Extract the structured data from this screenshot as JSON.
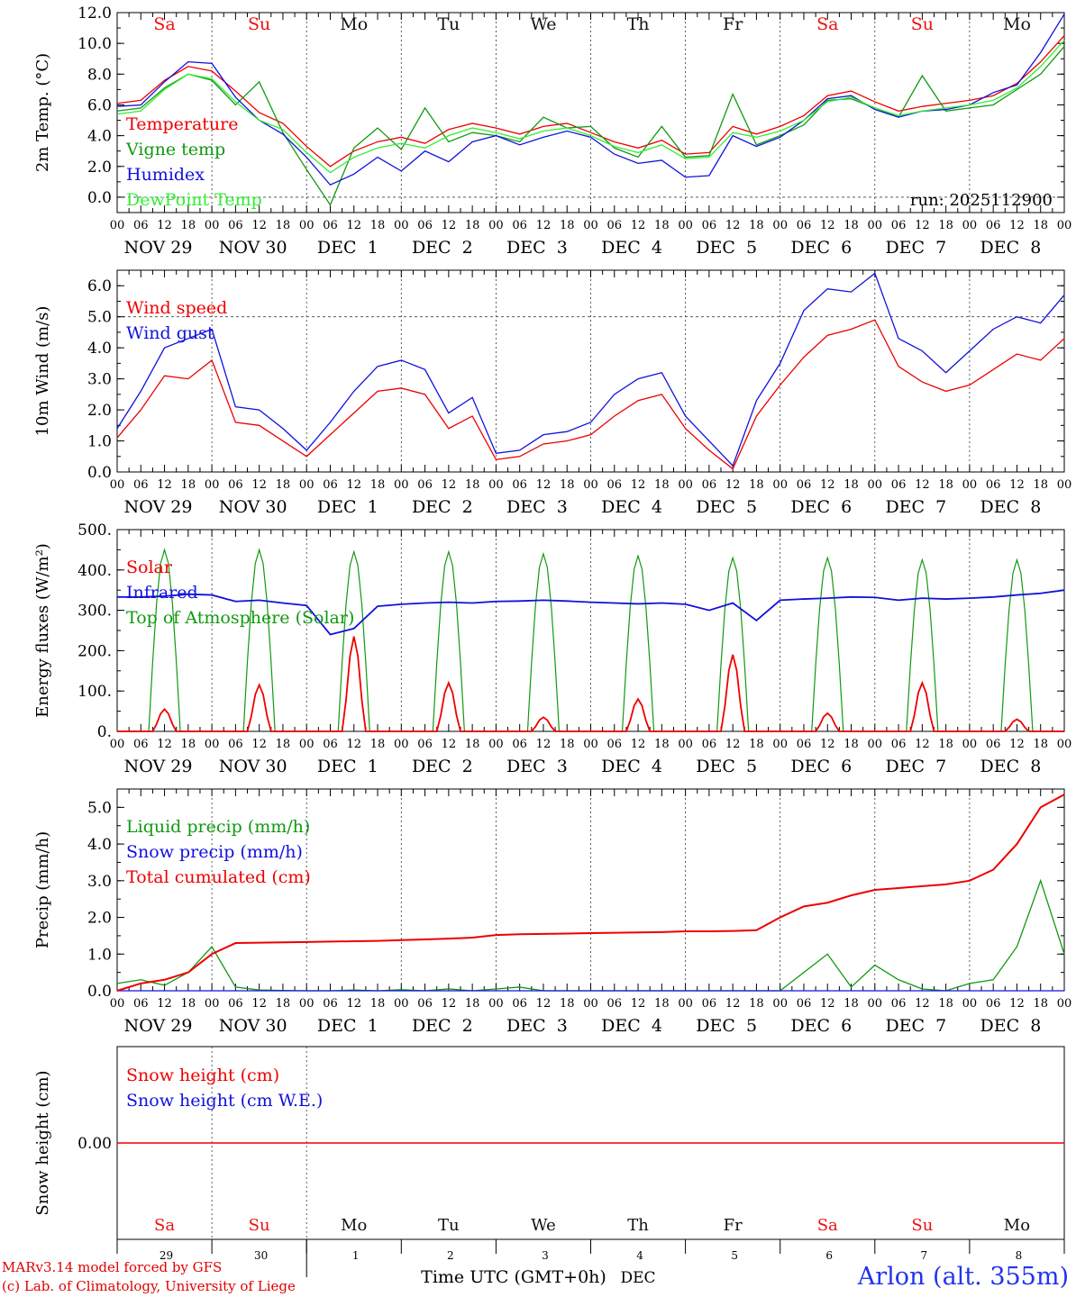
{
  "meteogram": {
    "station": "Arlon (alt. 355m)",
    "run_label": "run: 2025112900",
    "credit_line1": "MARv3.14 model forced by GFS",
    "credit_line2": "(c) Lab. of Climatology, University of Liege",
    "time_axis_title": "Time UTC (GMT+0h)",
    "month_label": "DEC",
    "hour_ticks": [
      "00",
      "06",
      "12",
      "18"
    ],
    "days": [
      {
        "date_label": "NOV 29",
        "weekday": "Sa",
        "day_num": "29",
        "weekend": true
      },
      {
        "date_label": "NOV 30",
        "weekday": "Su",
        "day_num": "30",
        "weekend": true
      },
      {
        "date_label": "DEC  1",
        "weekday": "Mo",
        "day_num": "1",
        "weekend": false
      },
      {
        "date_label": "DEC  2",
        "weekday": "Tu",
        "day_num": "2",
        "weekend": false
      },
      {
        "date_label": "DEC  3",
        "weekday": "We",
        "day_num": "3",
        "weekend": false
      },
      {
        "date_label": "DEC  4",
        "weekday": "Th",
        "day_num": "4",
        "weekend": false
      },
      {
        "date_label": "DEC  5",
        "weekday": "Fr",
        "day_num": "5",
        "weekend": false
      },
      {
        "date_label": "DEC  6",
        "weekday": "Sa",
        "day_num": "6",
        "weekend": true
      },
      {
        "date_label": "DEC  7",
        "weekday": "Su",
        "day_num": "7",
        "weekend": true
      },
      {
        "date_label": "DEC  8",
        "weekday": "Mo",
        "day_num": "8",
        "weekend": false
      }
    ],
    "colors": {
      "weekend": "#ee1111",
      "weekday": "#111111",
      "red": "#ee0000",
      "green": "#119911",
      "blue": "#1111dd",
      "lightgreen": "#33ee33"
    }
  },
  "chart_data": [
    {
      "type": "line",
      "id": "temp",
      "ylabel": "2m Temp. (°C)",
      "ylim": [
        -1.0,
        12.0
      ],
      "ytick_values": [
        0,
        2,
        4,
        6,
        8,
        10,
        12
      ],
      "ytick_labels": [
        "0.0",
        "2.0",
        "4.0",
        "6.0",
        "8.0",
        "10.0",
        "12.0"
      ],
      "ref_lines": [
        0
      ],
      "x_hours": [
        0,
        6,
        12,
        18,
        24,
        30,
        36,
        42,
        48,
        54,
        60,
        66,
        72,
        78,
        84,
        90,
        96,
        102,
        108,
        114,
        120,
        126,
        132,
        138,
        144,
        150,
        156,
        162,
        168,
        174,
        180,
        186,
        192,
        198,
        204,
        210,
        216,
        222,
        228,
        234,
        240
      ],
      "series": [
        {
          "name": "Temperature",
          "color": "#ee0000",
          "values": [
            6.1,
            6.3,
            7.6,
            8.5,
            8.2,
            6.9,
            5.5,
            4.8,
            3.3,
            2.0,
            3.0,
            3.6,
            3.9,
            3.5,
            4.4,
            4.8,
            4.5,
            4.1,
            4.6,
            4.8,
            4.2,
            3.6,
            3.2,
            3.7,
            2.8,
            2.9,
            4.6,
            4.1,
            4.6,
            5.3,
            6.6,
            6.9,
            6.2,
            5.6,
            5.9,
            6.1,
            6.3,
            6.6,
            7.4,
            8.8,
            10.5
          ]
        },
        {
          "name": "Vigne temp",
          "color": "#119911",
          "values": [
            5.6,
            5.8,
            7.1,
            8.0,
            7.6,
            6.0,
            7.5,
            4.2,
            1.8,
            -0.5,
            3.2,
            4.5,
            3.1,
            5.8,
            3.6,
            4.2,
            4.0,
            3.6,
            5.2,
            4.5,
            4.6,
            3.2,
            2.6,
            4.6,
            2.6,
            2.7,
            6.7,
            3.4,
            4.0,
            4.7,
            6.3,
            6.4,
            5.8,
            5.2,
            7.9,
            5.6,
            5.8,
            6.0,
            7.0,
            8.0,
            9.8
          ]
        },
        {
          "name": "Humidex",
          "color": "#1111dd",
          "values": [
            5.9,
            6.0,
            7.5,
            8.8,
            8.7,
            6.5,
            5.0,
            4.1,
            2.6,
            0.8,
            1.5,
            2.6,
            1.7,
            3.0,
            2.3,
            3.6,
            4.0,
            3.4,
            3.9,
            4.3,
            3.9,
            2.8,
            2.2,
            2.4,
            1.3,
            1.4,
            4.0,
            3.3,
            3.9,
            5.0,
            6.4,
            6.6,
            5.7,
            5.2,
            5.6,
            5.7,
            6.0,
            6.8,
            7.3,
            9.4,
            11.9
          ]
        },
        {
          "name": "DewPoint Temp",
          "color": "#33ee33",
          "values": [
            5.4,
            5.6,
            7.0,
            8.0,
            7.7,
            6.2,
            5.0,
            4.4,
            2.9,
            1.6,
            2.6,
            3.2,
            3.5,
            3.2,
            4.0,
            4.5,
            4.2,
            3.8,
            4.3,
            4.5,
            4.0,
            3.3,
            2.9,
            3.4,
            2.5,
            2.6,
            4.2,
            3.9,
            4.3,
            5.0,
            6.2,
            6.5,
            5.8,
            5.3,
            5.6,
            5.8,
            6.0,
            6.3,
            7.1,
            8.5,
            10.2
          ]
        }
      ]
    },
    {
      "type": "line",
      "id": "wind",
      "ylabel": "10m Wind (m/s)",
      "ylim": [
        0,
        6.5
      ],
      "ytick_values": [
        0,
        1,
        2,
        3,
        4,
        5,
        6
      ],
      "ytick_labels": [
        "0.0",
        "1.0",
        "2.0",
        "3.0",
        "4.0",
        "5.0",
        "6.0"
      ],
      "ref_lines": [
        5
      ],
      "x_hours": [
        0,
        6,
        12,
        18,
        24,
        30,
        36,
        42,
        48,
        54,
        60,
        66,
        72,
        78,
        84,
        90,
        96,
        102,
        108,
        114,
        120,
        126,
        132,
        138,
        144,
        150,
        156,
        162,
        168,
        174,
        180,
        186,
        192,
        198,
        204,
        210,
        216,
        222,
        228,
        234,
        240
      ],
      "series": [
        {
          "name": "Wind speed",
          "color": "#ee0000",
          "values": [
            1.1,
            2.0,
            3.1,
            3.0,
            3.6,
            1.6,
            1.5,
            1.0,
            0.5,
            1.2,
            1.9,
            2.6,
            2.7,
            2.5,
            1.4,
            1.8,
            0.4,
            0.5,
            0.9,
            1.0,
            1.2,
            1.8,
            2.3,
            2.5,
            1.4,
            0.7,
            0.1,
            1.8,
            2.8,
            3.7,
            4.4,
            4.6,
            4.9,
            3.4,
            2.9,
            2.6,
            2.8,
            3.3,
            3.8,
            3.6,
            4.3
          ]
        },
        {
          "name": "Wind gust",
          "color": "#1111dd",
          "values": [
            1.4,
            2.6,
            4.0,
            4.3,
            4.6,
            2.1,
            2.0,
            1.4,
            0.7,
            1.6,
            2.6,
            3.4,
            3.6,
            3.3,
            1.9,
            2.4,
            0.6,
            0.7,
            1.2,
            1.3,
            1.6,
            2.5,
            3.0,
            3.2,
            1.8,
            1.0,
            0.2,
            2.3,
            3.5,
            5.2,
            5.9,
            5.8,
            6.4,
            4.3,
            3.9,
            3.2,
            3.9,
            4.6,
            5.0,
            4.8,
            5.7
          ]
        }
      ]
    },
    {
      "type": "line",
      "id": "energy",
      "ylabel": "Energy fluxes (W/m²)",
      "ylim": [
        0,
        500
      ],
      "ytick_values": [
        0,
        100,
        200,
        300,
        400,
        500
      ],
      "ytick_labels": [
        "0.",
        "100.",
        "200.",
        "300.",
        "400.",
        "500."
      ],
      "ref_lines": [],
      "day_peak_solar": [
        55,
        115,
        235,
        120,
        35,
        80,
        190,
        45,
        120,
        30
      ],
      "day_peak_toa": [
        450,
        450,
        445,
        445,
        440,
        435,
        430,
        430,
        425,
        425
      ],
      "infrared_x_hours": [
        0,
        6,
        12,
        18,
        24,
        30,
        36,
        42,
        48,
        54,
        60,
        66,
        72,
        78,
        84,
        90,
        96,
        102,
        108,
        114,
        120,
        126,
        132,
        138,
        144,
        150,
        156,
        162,
        168,
        174,
        180,
        186,
        192,
        198,
        204,
        210,
        216,
        222,
        228,
        234,
        240
      ],
      "infrared_values": [
        333,
        333,
        335,
        340,
        338,
        322,
        325,
        318,
        312,
        240,
        255,
        310,
        315,
        318,
        320,
        318,
        322,
        323,
        325,
        323,
        320,
        318,
        316,
        318,
        315,
        300,
        318,
        275,
        325,
        328,
        330,
        333,
        332,
        325,
        330,
        328,
        330,
        333,
        338,
        342,
        350
      ],
      "series": [
        {
          "name": "Solar",
          "color": "#ee0000"
        },
        {
          "name": "Infrared",
          "color": "#1111dd"
        },
        {
          "name": "Top of Atmosphere (Solar)",
          "color": "#119911"
        }
      ]
    },
    {
      "type": "line",
      "id": "precip",
      "ylabel": "Precip (mm/h)",
      "ylim": [
        0,
        5.5
      ],
      "ytick_values": [
        0,
        1,
        2,
        3,
        4,
        5
      ],
      "ytick_labels": [
        "0.0",
        "1.0",
        "2.0",
        "3.0",
        "4.0",
        "5.0"
      ],
      "ref_lines": [],
      "x_hours": [
        0,
        6,
        12,
        18,
        24,
        30,
        36,
        42,
        48,
        54,
        60,
        66,
        72,
        78,
        84,
        90,
        96,
        102,
        108,
        114,
        120,
        126,
        132,
        138,
        144,
        150,
        156,
        162,
        168,
        174,
        180,
        186,
        192,
        198,
        204,
        210,
        216,
        222,
        228,
        234,
        240
      ],
      "series": [
        {
          "name": "Liquid precip (mm/h)",
          "color": "#119911",
          "values": [
            0.2,
            0.3,
            0.15,
            0.5,
            1.2,
            0.1,
            0.02,
            0.01,
            0.0,
            0.0,
            0.02,
            0.0,
            0.03,
            0.0,
            0.05,
            0.0,
            0.05,
            0.1,
            0.0,
            0.0,
            0.0,
            0.0,
            0.0,
            0.0,
            0.0,
            0.0,
            0.0,
            0.0,
            0.0,
            0.5,
            1.0,
            0.1,
            0.7,
            0.3,
            0.05,
            0.0,
            0.2,
            0.3,
            1.2,
            3.0,
            1.0
          ]
        },
        {
          "name": "Snow precip (mm/h)",
          "color": "#1111dd",
          "values": [
            0,
            0,
            0,
            0,
            0,
            0,
            0,
            0,
            0,
            0,
            0,
            0,
            0,
            0,
            0,
            0,
            0,
            0,
            0,
            0,
            0,
            0,
            0,
            0,
            0,
            0,
            0,
            0,
            0,
            0,
            0,
            0,
            0,
            0,
            0,
            0,
            0,
            0,
            0,
            0,
            0
          ]
        },
        {
          "name": "Total cumulated (cm)",
          "color": "#ee0000",
          "values": [
            0.0,
            0.2,
            0.3,
            0.5,
            1.0,
            1.3,
            1.31,
            1.32,
            1.33,
            1.34,
            1.35,
            1.36,
            1.38,
            1.4,
            1.42,
            1.45,
            1.52,
            1.54,
            1.55,
            1.56,
            1.57,
            1.58,
            1.59,
            1.6,
            1.62,
            1.62,
            1.63,
            1.65,
            2.0,
            2.3,
            2.4,
            2.6,
            2.75,
            2.8,
            2.85,
            2.9,
            3.0,
            3.3,
            4.0,
            5.0,
            5.35
          ]
        }
      ]
    },
    {
      "type": "line",
      "id": "snow",
      "ylabel": "Snow height (cm)",
      "ylim": [
        -1,
        1
      ],
      "ytick_values": [
        0
      ],
      "ytick_labels": [
        "0.00"
      ],
      "ref_lines": [],
      "series": [
        {
          "name": "Snow height (cm)",
          "color": "#ee0000",
          "values": [
            0,
            0
          ]
        },
        {
          "name": "Snow height (cm W.E.)",
          "color": "#1111dd",
          "values": [
            0,
            0
          ]
        }
      ]
    }
  ]
}
